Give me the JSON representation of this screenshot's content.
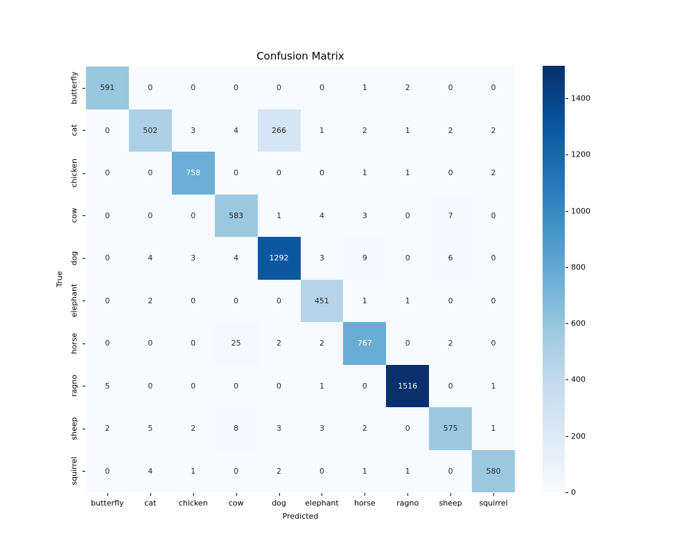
{
  "chart_data": {
    "type": "heatmap",
    "title": "Confusion Matrix",
    "xlabel": "Predicted",
    "ylabel": "True",
    "categories": [
      "butterfly",
      "cat",
      "chicken",
      "cow",
      "dog",
      "elephant",
      "horse",
      "ragno",
      "sheep",
      "squirrel"
    ],
    "matrix": [
      [
        591,
        0,
        0,
        0,
        0,
        0,
        1,
        2,
        0,
        0
      ],
      [
        0,
        502,
        3,
        4,
        266,
        1,
        2,
        1,
        2,
        2
      ],
      [
        0,
        0,
        758,
        0,
        0,
        0,
        1,
        1,
        0,
        2
      ],
      [
        0,
        0,
        0,
        583,
        1,
        4,
        3,
        0,
        7,
        0
      ],
      [
        0,
        4,
        3,
        4,
        1292,
        3,
        9,
        0,
        6,
        0
      ],
      [
        0,
        2,
        0,
        0,
        0,
        451,
        1,
        1,
        0,
        0
      ],
      [
        0,
        0,
        0,
        25,
        2,
        2,
        767,
        0,
        2,
        0
      ],
      [
        5,
        0,
        0,
        0,
        0,
        1,
        0,
        1516,
        0,
        1
      ],
      [
        2,
        5,
        2,
        8,
        3,
        3,
        2,
        0,
        575,
        1
      ],
      [
        0,
        4,
        1,
        0,
        2,
        0,
        1,
        1,
        0,
        580
      ]
    ],
    "vmin": 0,
    "vmax": 1516,
    "colorbar_ticks": [
      0,
      200,
      400,
      600,
      800,
      1000,
      1200,
      1400
    ],
    "legend_position": "right",
    "grid": false,
    "colormap": {
      "name": "Blues",
      "stops": [
        "#f7fbff",
        "#deebf7",
        "#c6dbef",
        "#9ecae1",
        "#6baed6",
        "#4292c6",
        "#2171b5",
        "#08519c",
        "#08306b"
      ]
    },
    "colors": {
      "background": "#ffffff",
      "annotation_dark": "#262626",
      "annotation_light": "#ffffff",
      "axis_text": "#000000"
    }
  }
}
